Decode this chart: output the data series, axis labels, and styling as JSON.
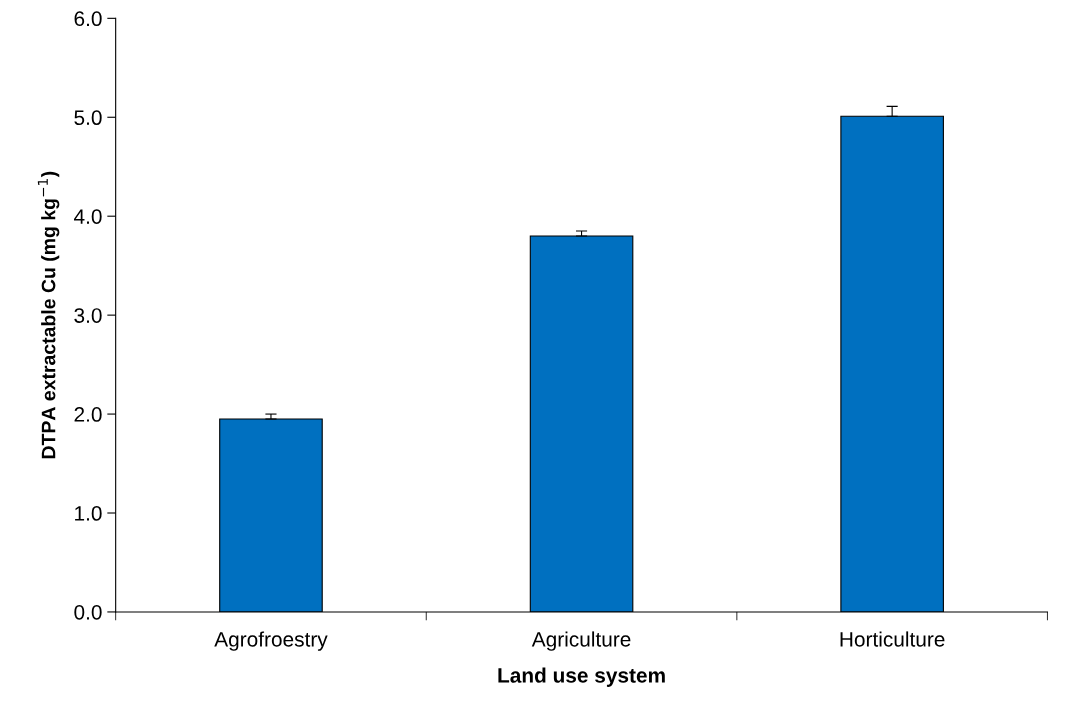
{
  "chart_data": {
    "type": "bar",
    "xlabel": "Land use system",
    "ylabel": "DTPA extractable Cu (mg kg$^{−1}$)",
    "categories": [
      "Agrofroestry",
      "Agriculture",
      "Horticulture"
    ],
    "values": [
      1.95,
      3.8,
      5.01
    ],
    "errors": [
      [
        1.95,
        2.0
      ],
      [
        3.8,
        3.85
      ],
      [
        5.01,
        5.11
      ]
    ],
    "color": "#0070c0",
    "ylim": [
      0,
      6
    ],
    "yticks": [
      {
        "value": 0,
        "label": "0.0"
      },
      {
        "value": 1,
        "label": "1.0"
      },
      {
        "value": 2,
        "label": "2.0"
      },
      {
        "value": 3,
        "label": "3.0"
      },
      {
        "value": 4,
        "label": "4.0"
      },
      {
        "value": 5,
        "label": "5.0"
      },
      {
        "value": 6,
        "label": "6.0"
      }
    ],
    "grid": false
  }
}
